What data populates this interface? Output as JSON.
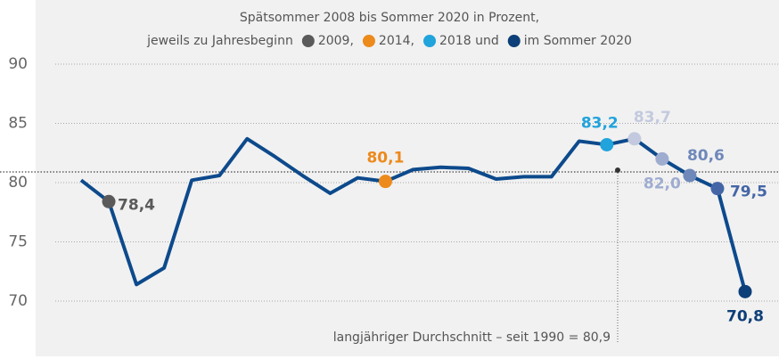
{
  "chart_data": {
    "type": "line",
    "subtitle": "Spätsommer 2008 bis Sommer 2020 in Prozent,",
    "subtitle_prefix": "jeweils zu Jahresbeginn",
    "legend": [
      {
        "name": "2009,",
        "color": "#5a5a5a"
      },
      {
        "name": "2014,",
        "color": "#ec8a1c"
      },
      {
        "name": "2018 und",
        "color": "#21a3dc"
      },
      {
        "name": "im Sommer 2020",
        "color": "#0d3f78"
      }
    ],
    "categories": [
      null,
      null,
      null,
      null,
      null,
      null,
      null,
      null,
      null,
      null,
      null,
      null,
      null,
      null,
      null,
      null,
      null,
      null,
      null,
      null,
      null,
      null,
      null,
      null,
      null
    ],
    "series": [
      {
        "name": null,
        "color": "#0d4a8c",
        "values": [
          80.2,
          78.4,
          71.4,
          72.8,
          80.2,
          80.6,
          83.7,
          82.2,
          80.6,
          79.1,
          80.4,
          80.1,
          81.1,
          81.3,
          81.2,
          80.3,
          80.5,
          80.5,
          83.5,
          83.2,
          83.7,
          82.0,
          80.6,
          79.5,
          70.8
        ],
        "value_labels": [
          null,
          "78,4",
          null,
          null,
          null,
          null,
          null,
          null,
          null,
          null,
          null,
          "80,1",
          null,
          null,
          null,
          null,
          null,
          null,
          null,
          "83,2",
          "83,7",
          "82,0",
          "80,6",
          "79,5",
          "70,8"
        ],
        "point_colors": [
          null,
          "#5a5a5a",
          null,
          null,
          null,
          null,
          null,
          null,
          null,
          null,
          null,
          "#ec8a1c",
          null,
          null,
          null,
          null,
          null,
          null,
          null,
          "#21a3dc",
          "#c3cadf",
          "#9eacd0",
          "#6f88ba",
          "#4466a6",
          "#0d3f78"
        ]
      }
    ],
    "reference": {
      "value": 80.9,
      "label": "langjähriger Durchschnitt – seit 1990 = 80,9"
    },
    "ylim": [
      68,
      94
    ],
    "yticks": [
      70,
      75,
      80,
      85,
      90
    ],
    "grid": true
  }
}
